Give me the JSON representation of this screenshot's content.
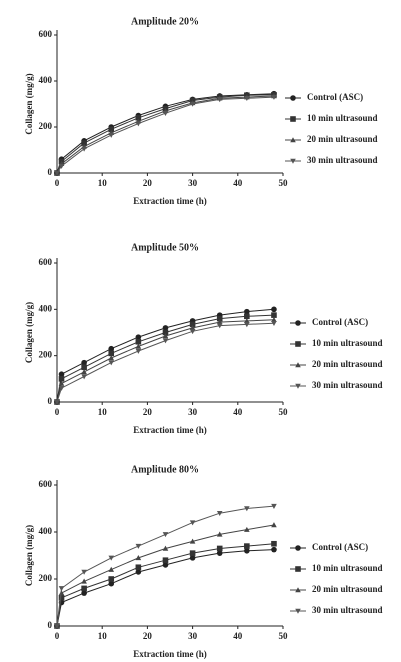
{
  "chart_data": [
    {
      "type": "line",
      "title": "Amplitude 20%",
      "x_label": "Extraction time (h)",
      "y_label": "Collagen (mg/g)",
      "x": [
        0,
        1,
        6,
        12,
        18,
        24,
        30,
        36,
        42,
        48
      ],
      "xlim": [
        0,
        50
      ],
      "ylim": [
        0,
        600
      ],
      "xticks": [
        0,
        10,
        20,
        30,
        40,
        50
      ],
      "yticks": [
        0,
        200,
        400,
        600
      ],
      "series": [
        {
          "name": "Control (ASC)",
          "color": "#222222",
          "marker": "circle",
          "values": [
            0,
            60,
            140,
            200,
            250,
            290,
            320,
            335,
            340,
            345
          ]
        },
        {
          "name": "10 min ultrasound",
          "color": "#333333",
          "marker": "square",
          "values": [
            0,
            50,
            130,
            190,
            240,
            280,
            315,
            330,
            338,
            340
          ]
        },
        {
          "name": "20 min ultrasound",
          "color": "#444444",
          "marker": "triangle",
          "values": [
            0,
            40,
            115,
            175,
            225,
            270,
            305,
            325,
            330,
            335
          ]
        },
        {
          "name": "30 min ultrasound",
          "color": "#555555",
          "marker": "triangle-down",
          "values": [
            0,
            30,
            105,
            165,
            215,
            260,
            300,
            320,
            325,
            330
          ]
        }
      ]
    },
    {
      "type": "line",
      "title": "Amplitude 50%",
      "x_label": "Extraction time (h)",
      "y_label": "Collagen (mg/g)",
      "x": [
        0,
        1,
        6,
        12,
        18,
        24,
        30,
        36,
        42,
        48
      ],
      "xlim": [
        0,
        50
      ],
      "ylim": [
        0,
        600
      ],
      "xticks": [
        0,
        10,
        20,
        30,
        40,
        50
      ],
      "yticks": [
        0,
        200,
        400,
        600
      ],
      "series": [
        {
          "name": "Control (ASC)",
          "color": "#222222",
          "marker": "circle",
          "values": [
            0,
            120,
            170,
            230,
            280,
            320,
            350,
            375,
            390,
            400
          ]
        },
        {
          "name": "10 min ultrasound",
          "color": "#333333",
          "marker": "square",
          "values": [
            0,
            100,
            150,
            210,
            260,
            300,
            335,
            360,
            370,
            375
          ]
        },
        {
          "name": "20 min ultrasound",
          "color": "#444444",
          "marker": "triangle",
          "values": [
            0,
            80,
            130,
            190,
            240,
            285,
            320,
            345,
            350,
            355
          ]
        },
        {
          "name": "30 min ultrasound",
          "color": "#555555",
          "marker": "triangle-down",
          "values": [
            0,
            60,
            110,
            170,
            220,
            265,
            305,
            330,
            335,
            340
          ]
        }
      ]
    },
    {
      "type": "line",
      "title": "Amplitude 80%",
      "x_label": "Extraction time (h)",
      "y_label": "Collagen (mg/g)",
      "x": [
        0,
        1,
        6,
        12,
        18,
        24,
        30,
        36,
        42,
        48
      ],
      "xlim": [
        0,
        50
      ],
      "ylim": [
        0,
        600
      ],
      "xticks": [
        0,
        10,
        20,
        30,
        40,
        50
      ],
      "yticks": [
        0,
        200,
        400,
        600
      ],
      "series": [
        {
          "name": "Control (ASC)",
          "color": "#222222",
          "marker": "circle",
          "values": [
            0,
            100,
            140,
            180,
            230,
            260,
            290,
            310,
            320,
            325
          ]
        },
        {
          "name": "10 min ultrasound",
          "color": "#333333",
          "marker": "square",
          "values": [
            0,
            120,
            160,
            200,
            250,
            280,
            310,
            330,
            340,
            350
          ]
        },
        {
          "name": "20 min ultrasound",
          "color": "#444444",
          "marker": "triangle",
          "values": [
            0,
            140,
            190,
            240,
            290,
            330,
            360,
            390,
            410,
            430
          ]
        },
        {
          "name": "30 min ultrasound",
          "color": "#555555",
          "marker": "triangle-down",
          "values": [
            0,
            160,
            230,
            290,
            340,
            390,
            440,
            480,
            500,
            510
          ]
        }
      ]
    }
  ]
}
